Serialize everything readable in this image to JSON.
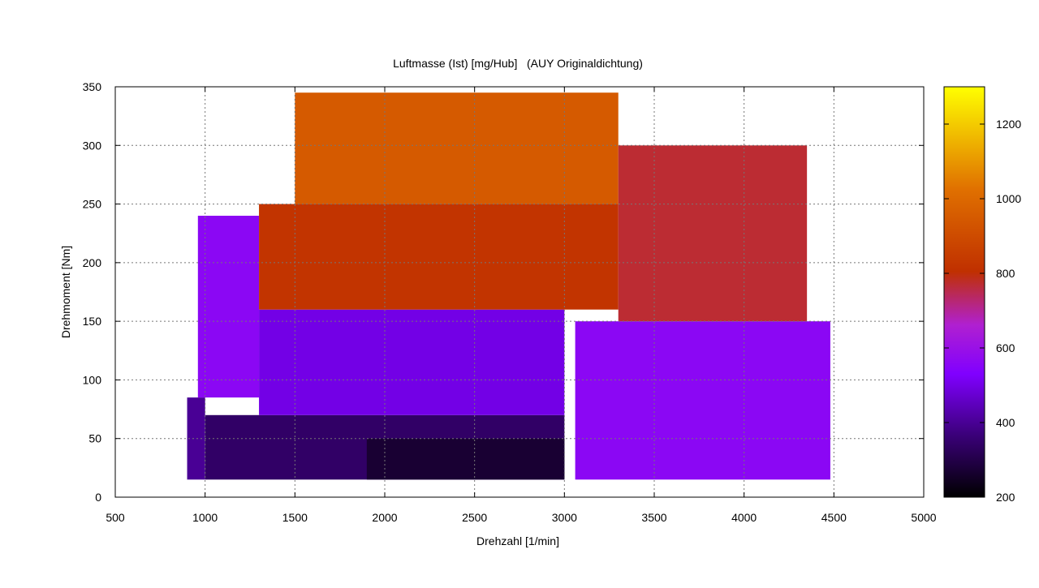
{
  "chart_data": {
    "type": "heatmap",
    "title": "Luftmasse (Ist) [mg/Hub]   (AUY Originaldichtung)",
    "xlabel": "Drehzahl [1/min]",
    "ylabel": "Drehmoment [Nm]",
    "xlim": [
      500,
      5000
    ],
    "ylim": [
      0,
      350
    ],
    "x_ticks": [
      "500",
      "1000",
      "1500",
      "2000",
      "2500",
      "3000",
      "3500",
      "4000",
      "4500",
      "5000"
    ],
    "y_ticks": [
      "0",
      "50",
      "100",
      "150",
      "200",
      "250",
      "300",
      "350"
    ],
    "grid": true,
    "colorbar": {
      "range": [
        200,
        1300
      ],
      "ticks": [
        "200",
        "400",
        "600",
        "800",
        "1000",
        "1200"
      ],
      "palette": [
        "#000000",
        "#3a0078",
        "#8000ff",
        "#b020d0",
        "#c03000",
        "#e07000",
        "#ffff00"
      ]
    },
    "approximate_regions": [
      {
        "x_range": [
          900,
          1000
        ],
        "y_range": [
          15,
          85
        ],
        "value": 400
      },
      {
        "x_range": [
          960,
          1300
        ],
        "y_range": [
          85,
          240
        ],
        "value": 560
      },
      {
        "x_range": [
          1000,
          3000
        ],
        "y_range": [
          15,
          70
        ],
        "value": 340
      },
      {
        "x_range": [
          1900,
          3000
        ],
        "y_range": [
          15,
          50
        ],
        "value": 270
      },
      {
        "x_range": [
          1300,
          3000
        ],
        "y_range": [
          70,
          160
        ],
        "value": 500
      },
      {
        "x_range": [
          3060,
          4480
        ],
        "y_range": [
          15,
          150
        ],
        "value": 560
      },
      {
        "x_range": [
          1300,
          3300
        ],
        "y_range": [
          160,
          250
        ],
        "value": 820
      },
      {
        "x_range": [
          1500,
          3300
        ],
        "y_range": [
          250,
          345
        ],
        "value": 950
      },
      {
        "x_range": [
          3300,
          4350
        ],
        "y_range": [
          150,
          300
        ],
        "value": 770
      }
    ]
  }
}
